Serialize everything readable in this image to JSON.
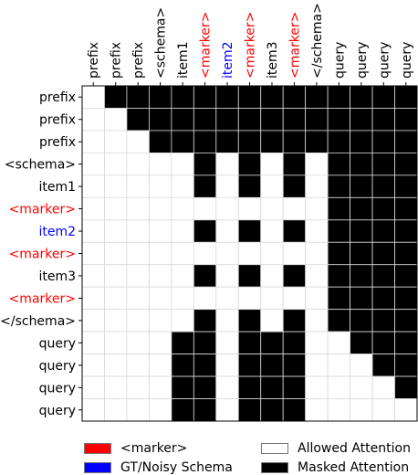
{
  "chart_data": {
    "type": "heatmap",
    "title": "",
    "xlabel": "",
    "ylabel": "",
    "x_tokens": [
      {
        "label": "prefix",
        "color": "#000000"
      },
      {
        "label": "prefix",
        "color": "#000000"
      },
      {
        "label": "prefix",
        "color": "#000000"
      },
      {
        "label": "<schema>",
        "color": "#000000"
      },
      {
        "label": "item1",
        "color": "#000000"
      },
      {
        "label": "<marker>",
        "color": "#ff0000"
      },
      {
        "label": "item2",
        "color": "#0000ff"
      },
      {
        "label": "<marker>",
        "color": "#ff0000"
      },
      {
        "label": "item3",
        "color": "#000000"
      },
      {
        "label": "<marker>",
        "color": "#ff0000"
      },
      {
        "label": "</schema>",
        "color": "#000000"
      },
      {
        "label": "query",
        "color": "#000000"
      },
      {
        "label": "query",
        "color": "#000000"
      },
      {
        "label": "query",
        "color": "#000000"
      },
      {
        "label": "query",
        "color": "#000000"
      }
    ],
    "y_tokens": [
      {
        "label": "prefix",
        "color": "#000000"
      },
      {
        "label": "prefix",
        "color": "#000000"
      },
      {
        "label": "prefix",
        "color": "#000000"
      },
      {
        "label": "<schema>",
        "color": "#000000"
      },
      {
        "label": "item1",
        "color": "#000000"
      },
      {
        "label": "<marker>",
        "color": "#ff0000"
      },
      {
        "label": "item2",
        "color": "#0000ff"
      },
      {
        "label": "<marker>",
        "color": "#ff0000"
      },
      {
        "label": "item3",
        "color": "#000000"
      },
      {
        "label": "<marker>",
        "color": "#ff0000"
      },
      {
        "label": "</schema>",
        "color": "#000000"
      },
      {
        "label": "query",
        "color": "#000000"
      },
      {
        "label": "query",
        "color": "#000000"
      },
      {
        "label": "query",
        "color": "#000000"
      },
      {
        "label": "query",
        "color": "#000000"
      }
    ],
    "mask_values": {
      "masked": 1,
      "allowed": 0
    },
    "matrix": [
      [
        0,
        1,
        1,
        1,
        1,
        1,
        1,
        1,
        1,
        1,
        1,
        1,
        1,
        1,
        1
      ],
      [
        0,
        0,
        1,
        1,
        1,
        1,
        1,
        1,
        1,
        1,
        1,
        1,
        1,
        1,
        1
      ],
      [
        0,
        0,
        0,
        1,
        1,
        1,
        1,
        1,
        1,
        1,
        1,
        1,
        1,
        1,
        1
      ],
      [
        0,
        0,
        0,
        0,
        0,
        1,
        0,
        1,
        0,
        1,
        0,
        1,
        1,
        1,
        1
      ],
      [
        0,
        0,
        0,
        0,
        0,
        1,
        0,
        1,
        0,
        1,
        0,
        1,
        1,
        1,
        1
      ],
      [
        0,
        0,
        0,
        0,
        0,
        0,
        0,
        0,
        0,
        0,
        0,
        1,
        1,
        1,
        1
      ],
      [
        0,
        0,
        0,
        0,
        0,
        1,
        0,
        1,
        0,
        1,
        0,
        1,
        1,
        1,
        1
      ],
      [
        0,
        0,
        0,
        0,
        0,
        0,
        0,
        0,
        0,
        0,
        0,
        1,
        1,
        1,
        1
      ],
      [
        0,
        0,
        0,
        0,
        0,
        1,
        0,
        1,
        0,
        1,
        0,
        1,
        1,
        1,
        1
      ],
      [
        0,
        0,
        0,
        0,
        0,
        0,
        0,
        0,
        0,
        0,
        0,
        1,
        1,
        1,
        1
      ],
      [
        0,
        0,
        0,
        0,
        0,
        1,
        0,
        1,
        0,
        1,
        0,
        1,
        1,
        1,
        1
      ],
      [
        0,
        0,
        0,
        0,
        1,
        1,
        0,
        1,
        1,
        1,
        0,
        0,
        1,
        1,
        1
      ],
      [
        0,
        0,
        0,
        0,
        1,
        1,
        0,
        1,
        1,
        1,
        0,
        0,
        0,
        1,
        1
      ],
      [
        0,
        0,
        0,
        0,
        1,
        1,
        0,
        1,
        1,
        1,
        0,
        0,
        0,
        0,
        1
      ],
      [
        0,
        0,
        0,
        0,
        1,
        1,
        0,
        1,
        1,
        1,
        0,
        0,
        0,
        0,
        0
      ]
    ],
    "colors": {
      "masked": "#000000",
      "allowed": "#ffffff",
      "grid": "#d9d9d9",
      "marker": "#ff0000",
      "schema_item": "#0000ff"
    },
    "legend": [
      {
        "label": "<marker>",
        "color": "#ff0000"
      },
      {
        "label": "GT/Noisy Schema",
        "color": "#0000ff"
      },
      {
        "label": "Allowed Attention",
        "color": "#ffffff"
      },
      {
        "label": "Masked Attention",
        "color": "#000000"
      }
    ],
    "legend_position": "bottom"
  }
}
